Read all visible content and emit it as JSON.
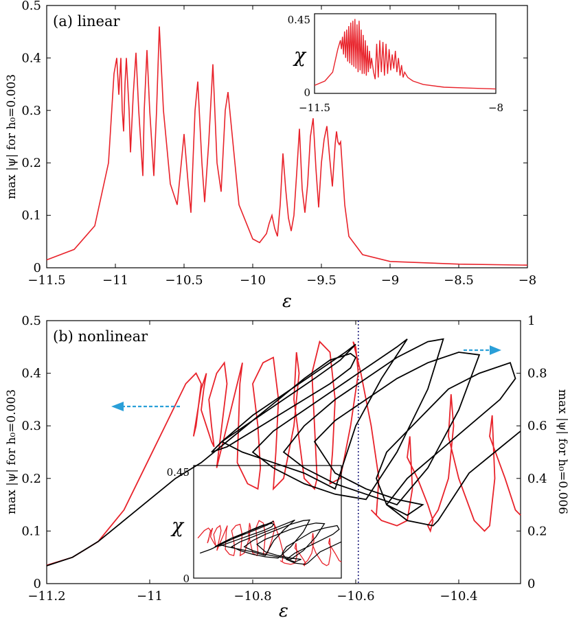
{
  "chart_data": [
    {
      "id": "a",
      "type": "line",
      "panel_label": "(a) linear",
      "xlabel": "ε",
      "ylabel": "max |ψ| for h₀=0.003",
      "xlim": [
        -11.5,
        -8
      ],
      "ylim": [
        0,
        0.5
      ],
      "xticks": [
        -11.5,
        -11,
        -10.5,
        -10,
        -9.5,
        -9,
        -8.5,
        -8
      ],
      "xtick_labels": [
        "−11.5",
        "−11",
        "−10.5",
        "−10",
        "−9.5",
        "−9",
        "−8.5",
        "−8"
      ],
      "yticks": [
        0,
        0.1,
        0.2,
        0.3,
        0.4,
        0.5
      ],
      "ytick_labels": [
        "0",
        "0.1",
        "0.2",
        "0.3",
        "0.4",
        "0.5"
      ],
      "color": "#e8222a",
      "series": [
        {
          "x": [
            -11.5,
            -11.3,
            -11.15,
            -11.05,
            -11.01,
            -10.99,
            -10.975,
            -10.96,
            -10.95,
            -10.94,
            -10.93,
            -10.92,
            -10.9,
            -10.89,
            -10.87,
            -10.85,
            -10.83,
            -10.8,
            -10.79,
            -10.77,
            -10.75,
            -10.72,
            -10.7,
            -10.68,
            -10.65,
            -10.6,
            -10.55,
            -10.52,
            -10.5,
            -10.47,
            -10.45,
            -10.42,
            -10.4,
            -10.37,
            -10.35,
            -10.32,
            -10.29,
            -10.26,
            -10.23,
            -10.2,
            -10.18,
            -10.1,
            -10.0,
            -9.95,
            -9.9,
            -9.88,
            -9.86,
            -9.84,
            -9.82,
            -9.8,
            -9.78,
            -9.76,
            -9.74,
            -9.72,
            -9.7,
            -9.68,
            -9.66,
            -9.64,
            -9.62,
            -9.6,
            -9.58,
            -9.56,
            -9.54,
            -9.52,
            -9.5,
            -9.48,
            -9.46,
            -9.44,
            -9.42,
            -9.4,
            -9.39,
            -9.38,
            -9.37,
            -9.36,
            -9.35,
            -9.33,
            -9.3,
            -9.2,
            -9.0,
            -8.5,
            -8.0
          ],
          "y": [
            0.015,
            0.035,
            0.08,
            0.2,
            0.37,
            0.4,
            0.33,
            0.4,
            0.3,
            0.26,
            0.35,
            0.4,
            0.3,
            0.22,
            0.33,
            0.41,
            0.3,
            0.175,
            0.3,
            0.415,
            0.3,
            0.175,
            0.3,
            0.46,
            0.3,
            0.16,
            0.12,
            0.2,
            0.255,
            0.16,
            0.105,
            0.3,
            0.355,
            0.2,
            0.125,
            0.24,
            0.388,
            0.2,
            0.145,
            0.3,
            0.335,
            0.12,
            0.055,
            0.048,
            0.065,
            0.085,
            0.1,
            0.075,
            0.06,
            0.12,
            0.218,
            0.15,
            0.095,
            0.07,
            0.1,
            0.18,
            0.265,
            0.15,
            0.105,
            0.16,
            0.25,
            0.285,
            0.19,
            0.115,
            0.2,
            0.245,
            0.27,
            0.21,
            0.155,
            0.235,
            0.26,
            0.24,
            0.235,
            0.24,
            0.2,
            0.12,
            0.06,
            0.025,
            0.012,
            0.007,
            0.005
          ]
        }
      ],
      "inset": {
        "type": "line",
        "ylabel": "χ",
        "xlim": [
          -11.5,
          -8
        ],
        "ylim": [
          0,
          0.45
        ],
        "xtick_labels": [
          "−11.5",
          "−8"
        ],
        "ytick_labels": [
          "0",
          "0.45"
        ],
        "color": "#e8222a",
        "x": [
          -11.5,
          -11.3,
          -11.15,
          -11.05,
          -11.0,
          -10.98,
          -10.96,
          -10.94,
          -10.92,
          -10.9,
          -10.88,
          -10.86,
          -10.84,
          -10.82,
          -10.8,
          -10.78,
          -10.76,
          -10.74,
          -10.72,
          -10.7,
          -10.68,
          -10.66,
          -10.64,
          -10.62,
          -10.6,
          -10.58,
          -10.56,
          -10.54,
          -10.52,
          -10.5,
          -10.48,
          -10.46,
          -10.44,
          -10.42,
          -10.4,
          -10.38,
          -10.36,
          -10.33,
          -10.3,
          -10.27,
          -10.24,
          -10.21,
          -10.18,
          -10.15,
          -10.12,
          -10.09,
          -10.06,
          -10.03,
          -10.0,
          -9.97,
          -9.94,
          -9.91,
          -9.88,
          -9.85,
          -9.82,
          -9.79,
          -9.76,
          -9.7,
          -9.6,
          -9.4,
          -9.0,
          -8.5,
          -8.0
        ],
        "y": [
          0.045,
          0.07,
          0.12,
          0.25,
          0.3,
          0.25,
          0.32,
          0.22,
          0.35,
          0.2,
          0.36,
          0.18,
          0.38,
          0.17,
          0.4,
          0.16,
          0.41,
          0.15,
          0.42,
          0.14,
          0.39,
          0.12,
          0.41,
          0.13,
          0.36,
          0.11,
          0.33,
          0.11,
          0.3,
          0.1,
          0.27,
          0.12,
          0.24,
          0.14,
          0.2,
          0.16,
          0.12,
          0.08,
          0.28,
          0.09,
          0.3,
          0.12,
          0.29,
          0.1,
          0.28,
          0.11,
          0.25,
          0.13,
          0.22,
          0.14,
          0.24,
          0.12,
          0.2,
          0.1,
          0.16,
          0.09,
          0.12,
          0.09,
          0.07,
          0.05,
          0.035,
          0.03,
          0.025
        ]
      }
    },
    {
      "id": "b",
      "type": "line",
      "panel_label": "(b) nonlinear",
      "xlabel": "ε",
      "ylabel_left": "max |ψ| for h₀=0.003",
      "ylabel_right": "max |ψ| for h₀=0.006",
      "xlim": [
        -11.2,
        -10.28
      ],
      "ylim_left": [
        0,
        0.5
      ],
      "ylim_right": [
        0,
        1
      ],
      "xticks": [
        -11.2,
        -11,
        -10.8,
        -10.6,
        -10.4
      ],
      "xtick_labels": [
        "−11.2",
        "−11",
        "−10.8",
        "−10.6",
        "−10.4"
      ],
      "yticks_left": [
        0,
        0.1,
        0.2,
        0.3,
        0.4,
        0.5
      ],
      "ytick_labels_left": [
        "0",
        "0.1",
        "0.2",
        "0.3",
        "0.4",
        "0.5"
      ],
      "yticks_right": [
        0,
        0.2,
        0.4,
        0.6,
        0.8,
        1
      ],
      "ytick_labels_right": [
        "0",
        "0.2",
        "0.4",
        "0.6",
        "0.8",
        "1"
      ],
      "vline_x": -10.595,
      "vline_color": "#1a1a7a",
      "arrow_color": "#2a9fd8",
      "series": [
        {
          "name": "h₀=0.003",
          "axis": "left",
          "color": "#e8222a",
          "x": [
            -11.2,
            -11.15,
            -11.1,
            -11.05,
            -11.0,
            -10.96,
            -10.93,
            -10.91,
            -10.9,
            -10.905,
            -10.91,
            -10.915,
            -10.9,
            -10.89,
            -10.895,
            -10.9,
            -10.89,
            -10.88,
            -10.875,
            -10.88,
            -10.885,
            -10.87,
            -10.855,
            -10.85,
            -10.86,
            -10.87,
            -10.85,
            -10.83,
            -10.82,
            -10.825,
            -10.83,
            -10.81,
            -10.79,
            -10.785,
            -10.79,
            -10.8,
            -10.78,
            -10.76,
            -10.75,
            -10.755,
            -10.76,
            -10.74,
            -10.72,
            -10.71,
            -10.715,
            -10.72,
            -10.7,
            -10.68,
            -10.675,
            -10.68,
            -10.685,
            -10.67,
            -10.65,
            -10.64,
            -10.645,
            -10.65,
            -10.63,
            -10.61,
            -10.595,
            -10.6,
            -10.605,
            -10.59,
            -10.57,
            -10.555,
            -10.56,
            -10.57,
            -10.55,
            -10.52,
            -10.5,
            -10.49,
            -10.495,
            -10.5,
            -10.48,
            -10.46,
            -10.45,
            -10.455,
            -10.46,
            -10.44,
            -10.42,
            -10.41,
            -10.415,
            -10.42,
            -10.4,
            -10.37,
            -10.35,
            -10.34,
            -10.33,
            -10.335,
            -10.34,
            -10.31,
            -10.29,
            -10.28
          ],
          "y": [
            0.035,
            0.05,
            0.08,
            0.14,
            0.24,
            0.32,
            0.38,
            0.4,
            0.38,
            0.34,
            0.3,
            0.28,
            0.37,
            0.4,
            0.37,
            0.33,
            0.3,
            0.27,
            0.26,
            0.3,
            0.35,
            0.4,
            0.42,
            0.38,
            0.3,
            0.22,
            0.3,
            0.38,
            0.42,
            0.38,
            0.23,
            0.19,
            0.18,
            0.22,
            0.3,
            0.38,
            0.42,
            0.43,
            0.35,
            0.25,
            0.18,
            0.2,
            0.3,
            0.4,
            0.44,
            0.35,
            0.2,
            0.18,
            0.2,
            0.3,
            0.4,
            0.46,
            0.44,
            0.35,
            0.25,
            0.19,
            0.2,
            0.3,
            0.4,
            0.45,
            0.46,
            0.4,
            0.3,
            0.2,
            0.13,
            0.14,
            0.12,
            0.11,
            0.12,
            0.18,
            0.28,
            0.24,
            0.2,
            0.15,
            0.12,
            0.1,
            0.11,
            0.14,
            0.2,
            0.3,
            0.36,
            0.28,
            0.2,
            0.12,
            0.1,
            0.11,
            0.2,
            0.32,
            0.28,
            0.2,
            0.14,
            0.13
          ]
        },
        {
          "name": "h₀=0.006",
          "axis": "right",
          "color": "#000000",
          "x": [
            -11.2,
            -11.15,
            -11.1,
            -11.05,
            -11.0,
            -10.95,
            -10.9,
            -10.85,
            -10.8,
            -10.75,
            -10.7,
            -10.65,
            -10.61,
            -10.6,
            -10.61,
            -10.65,
            -10.7,
            -10.75,
            -10.8,
            -10.85,
            -10.88,
            -10.86,
            -10.8,
            -10.74,
            -10.68,
            -10.63,
            -10.6,
            -10.62,
            -10.68,
            -10.74,
            -10.8,
            -10.86,
            -10.82,
            -10.76,
            -10.7,
            -10.64,
            -10.6,
            -10.55,
            -10.5,
            -10.52,
            -10.58,
            -10.64,
            -10.7,
            -10.76,
            -10.8,
            -10.76,
            -10.7,
            -10.64,
            -10.58,
            -10.52,
            -10.46,
            -10.43,
            -10.46,
            -10.52,
            -10.58,
            -10.64,
            -10.7,
            -10.74,
            -10.7,
            -10.64,
            -10.58,
            -10.52,
            -10.46,
            -10.4,
            -10.36,
            -10.4,
            -10.46,
            -10.52,
            -10.58,
            -10.64,
            -10.68,
            -10.64,
            -10.58,
            -10.52,
            -10.47,
            -10.5,
            -10.54,
            -10.56,
            -10.54,
            -10.48,
            -10.42,
            -10.36,
            -10.3,
            -10.29,
            -10.32,
            -10.38,
            -10.44,
            -10.5,
            -10.54,
            -10.5,
            -10.45,
            -10.44,
            -10.42,
            -10.38,
            -10.33,
            -10.28
          ],
          "y": [
            0.068,
            0.1,
            0.16,
            0.24,
            0.32,
            0.4,
            0.46,
            0.54,
            0.62,
            0.7,
            0.78,
            0.85,
            0.875,
            0.86,
            0.82,
            0.76,
            0.7,
            0.64,
            0.58,
            0.52,
            0.5,
            0.54,
            0.62,
            0.7,
            0.78,
            0.85,
            0.91,
            0.88,
            0.8,
            0.72,
            0.64,
            0.54,
            0.5,
            0.46,
            0.42,
            0.36,
            0.6,
            0.78,
            0.93,
            0.9,
            0.82,
            0.74,
            0.66,
            0.58,
            0.5,
            0.44,
            0.38,
            0.34,
            0.32,
            0.5,
            0.74,
            0.93,
            0.92,
            0.86,
            0.78,
            0.7,
            0.6,
            0.5,
            0.44,
            0.38,
            0.34,
            0.3,
            0.44,
            0.66,
            0.87,
            0.88,
            0.84,
            0.78,
            0.7,
            0.62,
            0.54,
            0.42,
            0.36,
            0.32,
            0.3,
            0.26,
            0.3,
            0.4,
            0.5,
            0.62,
            0.74,
            0.8,
            0.84,
            0.78,
            0.7,
            0.6,
            0.5,
            0.4,
            0.3,
            0.24,
            0.22,
            0.24,
            0.3,
            0.42,
            0.5,
            0.58
          ]
        }
      ],
      "inset": {
        "type": "line",
        "ylabel": "χ",
        "ylim": [
          0,
          0.45
        ],
        "ytick_labels": [
          "0",
          "0.45"
        ]
      }
    }
  ]
}
